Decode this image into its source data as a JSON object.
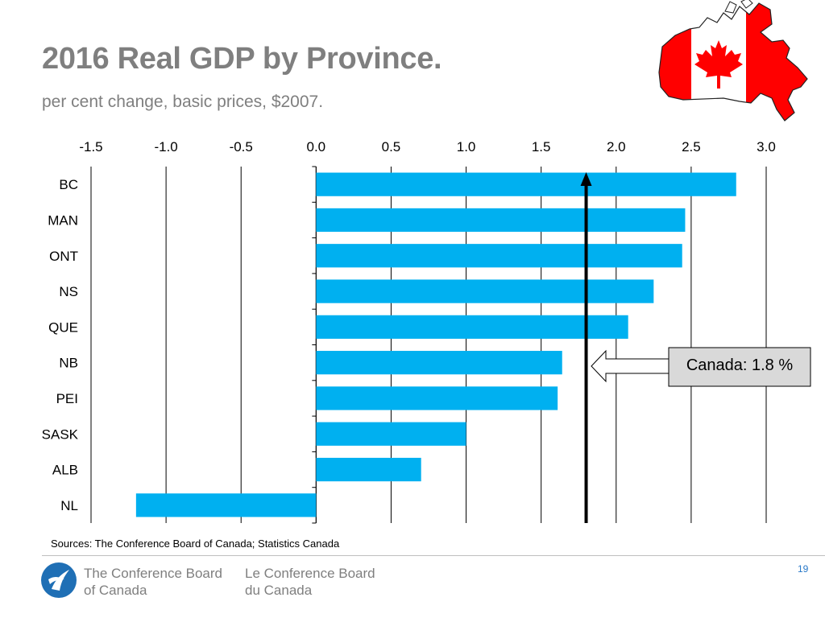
{
  "title": "2016 Real GDP by Province.",
  "subtitle": "per cent change, basic prices, $2007.",
  "sources": "Sources: The Conference Board of Canada; Statistics Canada",
  "footer": {
    "org_en": "The Conference Board\nof Canada",
    "org_fr": "Le Conference Board\ndu Canada",
    "page_number": "19"
  },
  "colors": {
    "bar": "#00b0f0",
    "title": "#7f7f7f",
    "canada_red": "#ff0000",
    "callout_bg": "#d9d9d9",
    "logo_blue": "#1f6fb5"
  },
  "icons": {
    "map": "canada-flag-map-icon",
    "logo": "conference-board-logo-icon"
  },
  "chart_data": {
    "type": "bar",
    "orientation": "horizontal",
    "categories": [
      "BC",
      "MAN",
      "ONT",
      "NS",
      "QUE",
      "NB",
      "PEI",
      "SASK",
      "ALB",
      "NL"
    ],
    "values": [
      2.8,
      2.46,
      2.44,
      2.25,
      2.08,
      1.64,
      1.61,
      1.0,
      0.7,
      -1.2
    ],
    "xlim": [
      -1.5,
      3.0
    ],
    "ticks": [
      "-1.5",
      "-1.0",
      "-0.5",
      "0.0",
      "0.5",
      "1.0",
      "1.5",
      "2.0",
      "2.5",
      "3.0"
    ],
    "tick_values": [
      -1.5,
      -1.0,
      -0.5,
      0.0,
      0.5,
      1.0,
      1.5,
      2.0,
      2.5,
      3.0
    ],
    "axis_position": "top",
    "grid": true,
    "reference_line": {
      "value": 1.8,
      "label": "Canada: 1.8 %"
    }
  }
}
